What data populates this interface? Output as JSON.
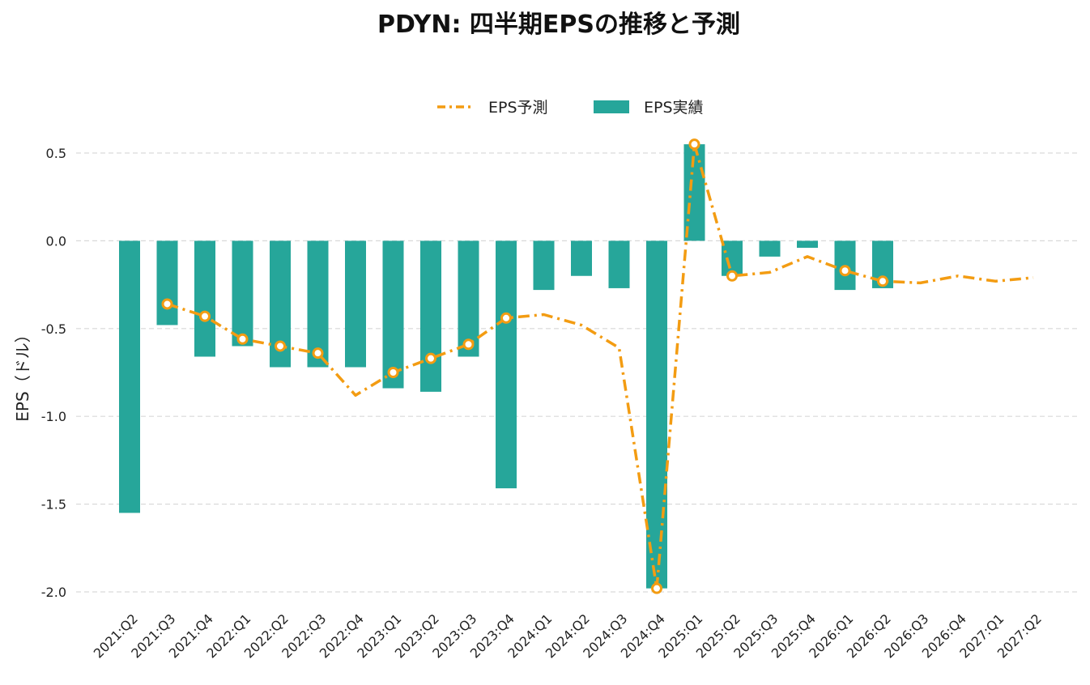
{
  "chart_data": {
    "type": "bar",
    "title": "PDYN: 四半期EPSの推移と予測",
    "xlabel": "",
    "ylabel": "EPS（ドル）",
    "ylim": [
      -2.05,
      0.62
    ],
    "yticks": [
      0.5,
      0.0,
      -0.5,
      -1.0,
      -1.5,
      -2.0
    ],
    "ytick_labels": [
      "0.5",
      "0.0",
      "-0.5",
      "-1.0",
      "-1.5",
      "-2.0"
    ],
    "grid": true,
    "legend_position": "top-center",
    "categories": [
      "2021:Q2",
      "2021:Q3",
      "2021:Q4",
      "2022:Q1",
      "2022:Q2",
      "2022:Q3",
      "2022:Q4",
      "2023:Q1",
      "2023:Q2",
      "2023:Q3",
      "2023:Q4",
      "2024:Q1",
      "2024:Q2",
      "2024:Q3",
      "2024:Q4",
      "2025:Q1",
      "2025:Q2",
      "2025:Q3",
      "2025:Q4",
      "2026:Q1",
      "2026:Q2",
      "2026:Q3",
      "2026:Q4",
      "2027:Q1",
      "2027:Q2"
    ],
    "series": [
      {
        "name": "EPS予測",
        "type": "line",
        "color": "#f39c12",
        "style": "dash-dot",
        "values": [
          null,
          -0.36,
          -0.43,
          -0.56,
          -0.6,
          -0.64,
          -0.88,
          -0.75,
          -0.67,
          -0.59,
          -0.44,
          -0.42,
          -0.48,
          -0.61,
          -1.98,
          0.55,
          -0.2,
          -0.18,
          -0.09,
          -0.17,
          -0.23,
          -0.24,
          -0.2,
          -0.23,
          -0.21
        ],
        "markers": [
          false,
          true,
          true,
          true,
          true,
          true,
          false,
          true,
          true,
          true,
          true,
          false,
          false,
          false,
          true,
          true,
          true,
          false,
          false,
          true,
          true,
          false,
          false,
          false,
          false
        ]
      },
      {
        "name": "EPS実績",
        "type": "bar",
        "color": "#26a69a",
        "values": [
          -1.55,
          -0.48,
          -0.66,
          -0.6,
          -0.72,
          -0.72,
          -0.72,
          -0.84,
          -0.86,
          -0.66,
          -1.41,
          -0.28,
          -0.2,
          -0.27,
          -1.98,
          0.55,
          -0.2,
          -0.09,
          -0.04,
          -0.28,
          -0.27,
          null,
          null,
          null,
          null
        ]
      }
    ]
  }
}
